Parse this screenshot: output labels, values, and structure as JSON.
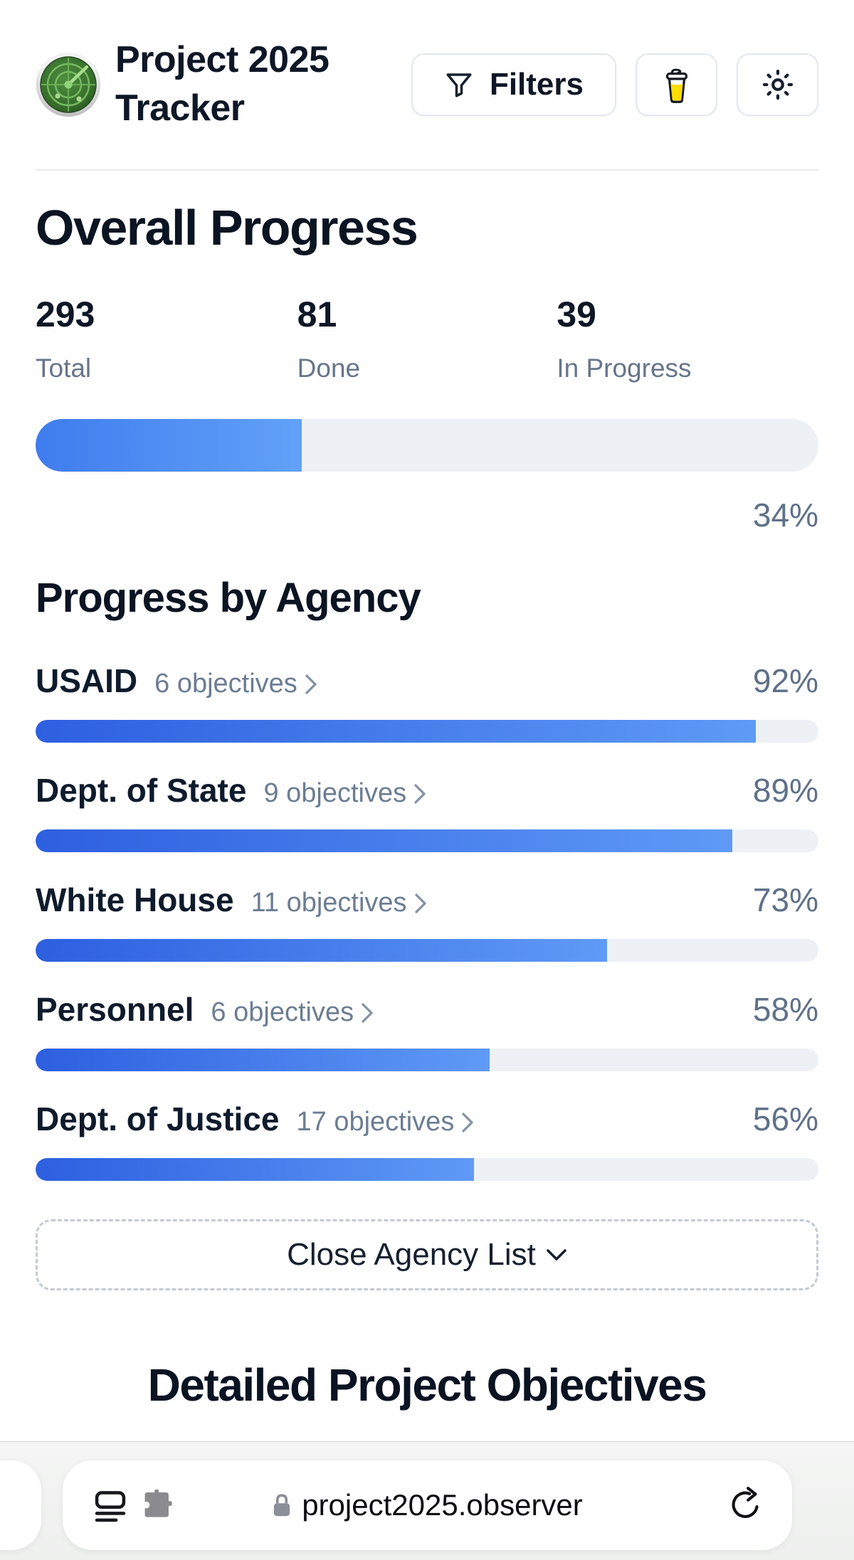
{
  "header": {
    "app_title": "Project 2025 Tracker",
    "filters_button": "Filters"
  },
  "icons": {
    "logo": "radar-icon",
    "filters": "funnel-icon",
    "support": "coffee-cup-icon",
    "theme": "sun-icon",
    "agency_link": "chevron-right-icon",
    "close_list": "chevron-down-icon",
    "browser_left": [
      "reader-lines-icon",
      "puzzle-extension-icon"
    ],
    "browser_url": "lock-icon",
    "browser_right": "reload-icon"
  },
  "overall": {
    "heading": "Overall Progress",
    "stats": [
      {
        "value": "293",
        "label": "Total"
      },
      {
        "value": "81",
        "label": "Done"
      },
      {
        "value": "39",
        "label": "In Progress"
      }
    ],
    "percent_label": "34%",
    "percent_value": 34
  },
  "agency": {
    "heading": "Progress by Agency",
    "rows": [
      {
        "name": "USAID",
        "objectives": "6 objectives",
        "percent_label": "92%",
        "percent_value": 92
      },
      {
        "name": "Dept. of State",
        "objectives": "9 objectives",
        "percent_label": "89%",
        "percent_value": 89
      },
      {
        "name": "White House",
        "objectives": "11 objectives",
        "percent_label": "73%",
        "percent_value": 73
      },
      {
        "name": "Personnel",
        "objectives": "6 objectives",
        "percent_label": "58%",
        "percent_value": 58
      },
      {
        "name": "Dept. of Justice",
        "objectives": "17 objectives",
        "percent_label": "56%",
        "percent_value": 56
      }
    ],
    "toggle_button": "Close Agency List"
  },
  "detailed": {
    "heading": "Detailed Project Objectives"
  },
  "browser": {
    "url": "project2025.observer"
  },
  "colors": {
    "overall_fill_start": "#3f7cee",
    "overall_fill_end": "#62a1f8",
    "agency_fill_start": "#2d5fe0",
    "agency_fill_end": "#5f9af6",
    "track": "#edf1f6",
    "heading_text": "#0b1422",
    "muted_text": "#66758a",
    "percent_text": "#5f7189",
    "coffee_yellow": "#ffdd00",
    "logo_green": "#3d7b33"
  }
}
